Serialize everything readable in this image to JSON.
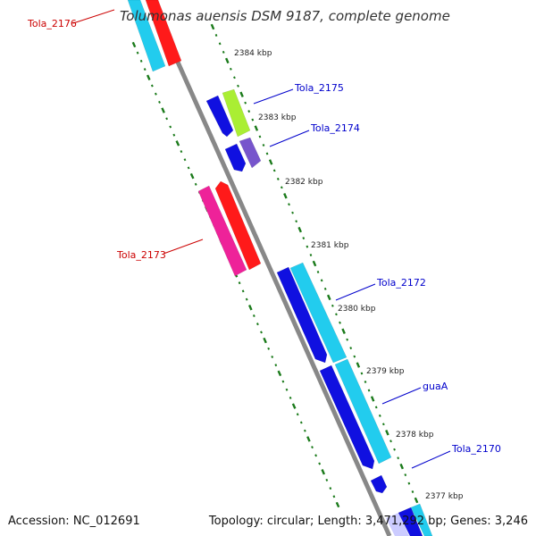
{
  "title": "Tolumonas auensis DSM 9187, complete genome",
  "footer": {
    "accession": "Accession: NC_012691",
    "topology": "Topology: circular; Length: 3,471,292 bp; Genes: 3,246"
  },
  "ticks": [
    {
      "label": "2384 kbp"
    },
    {
      "label": "2383 kbp"
    },
    {
      "label": "2382 kbp"
    },
    {
      "label": "2381 kbp"
    },
    {
      "label": "2380 kbp"
    },
    {
      "label": "2379 kbp"
    },
    {
      "label": "2378 kbp"
    },
    {
      "label": "2377 kbp"
    }
  ],
  "gene_labels": [
    {
      "name": "Tola_2176",
      "color": "#cc0000"
    },
    {
      "name": "Tola_2175",
      "color": "#0000cc"
    },
    {
      "name": "Tola_2174",
      "color": "#0000cc"
    },
    {
      "name": "Tola_2173",
      "color": "#cc0000"
    },
    {
      "name": "Tola_2172",
      "color": "#0000cc"
    },
    {
      "name": "guaA",
      "color": "#0000cc"
    },
    {
      "name": "Tola_2170",
      "color": "#0000cc"
    }
  ],
  "colors": {
    "backbone": "#888888",
    "tick_marks": "#1a7a1a",
    "cds_blue": "#1010e0",
    "cds_red": "#ff1a1a",
    "cds_cyan": "#22ccee",
    "cds_magenta": "#ee2299",
    "cds_lime": "#aaee33",
    "cds_purple": "#7755cc"
  }
}
